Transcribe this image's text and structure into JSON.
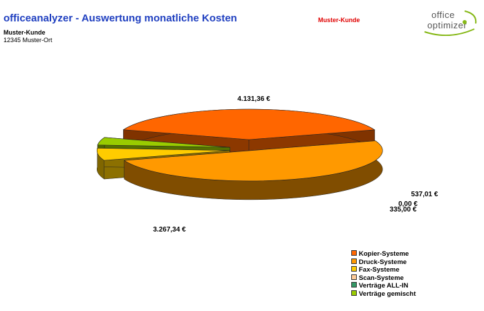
{
  "header": {
    "title": "officeanalyzer - Auswertung monatliche Kosten",
    "customer_badge": "Muster-Kunde",
    "address_name": "Muster-Kunde",
    "address_city": "12345 Muster-Ort"
  },
  "logo": {
    "line1": "office",
    "line2": "optimizer",
    "accent_color": "#86b817"
  },
  "chart_data": {
    "type": "pie",
    "title": "",
    "slices": [
      {
        "name": "Kopier-Systeme",
        "value": 3267.34,
        "label": "3.267,34 €",
        "color": "#ff6600"
      },
      {
        "name": "Druck-Systeme",
        "value": 4131.36,
        "label": "4.131,36 €",
        "color": "#ff9900"
      },
      {
        "name": "Fax-Systeme",
        "value": 537.01,
        "label": "537,01 €",
        "color": "#ffcc00"
      },
      {
        "name": "Scan-Systeme",
        "value": 0.0,
        "label": "0,00 €",
        "color": "#ffcc99"
      },
      {
        "name": "Verträge ALL-IN",
        "value": 0.0,
        "label": "",
        "color": "#339966"
      },
      {
        "name": "Verträge gemischt",
        "value": 335.0,
        "label": "335,00 €",
        "color": "#99cc00"
      }
    ],
    "legend_position": "bottom-right"
  }
}
